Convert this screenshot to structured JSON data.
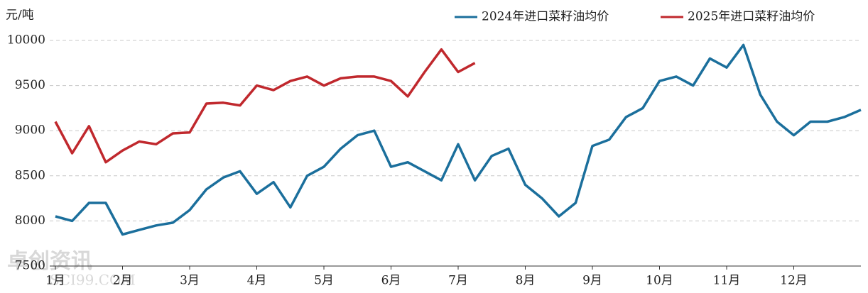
{
  "chart_data": {
    "type": "line",
    "y_label": "元/吨",
    "watermark": [
      "卓创资讯",
      "SCI99.COM"
    ],
    "categories": [
      "1月",
      null,
      null,
      null,
      "2月",
      null,
      null,
      null,
      "3月",
      null,
      null,
      null,
      "4月",
      null,
      null,
      null,
      "5月",
      null,
      null,
      null,
      "6月",
      null,
      null,
      null,
      "7月",
      null,
      null,
      null,
      "8月",
      null,
      null,
      null,
      "9月",
      null,
      null,
      null,
      "10月",
      null,
      null,
      null,
      "11月",
      null,
      null,
      null,
      "12月",
      null,
      null,
      null,
      null
    ],
    "series": [
      {
        "name": "2024年进口菜籽油均价",
        "color": "#1b6f9c",
        "values": [
          8050,
          8000,
          8200,
          8200,
          7850,
          7900,
          7950,
          7980,
          8120,
          8350,
          8480,
          8550,
          8300,
          8430,
          8150,
          8500,
          8600,
          8800,
          8950,
          9000,
          8600,
          8650,
          8550,
          8450,
          8850,
          8450,
          8720,
          8800,
          8400,
          8250,
          8050,
          8200,
          8830,
          8900,
          9150,
          9250,
          9550,
          9600,
          9500,
          9800,
          9700,
          9950,
          9400,
          9100,
          8950,
          9100,
          9100,
          9150,
          9230
        ]
      },
      {
        "name": "2025年进口菜籽油均价",
        "color": "#c0282d",
        "values": [
          9100,
          8750,
          9050,
          8650,
          8780,
          8880,
          8850,
          8970,
          8980,
          9300,
          9310,
          9280,
          9500,
          9450,
          9550,
          9600,
          9500,
          9580,
          9600,
          9600,
          9550,
          9380,
          9650,
          9900,
          9650,
          9750,
          null,
          null,
          null,
          null,
          null,
          null,
          null,
          null,
          null,
          null,
          null,
          null,
          null,
          null,
          null,
          null,
          null,
          null,
          null,
          null,
          null,
          null,
          null
        ]
      }
    ],
    "ylim": [
      7500,
      10000
    ],
    "yticks": [
      7500,
      8000,
      8500,
      9000,
      9500,
      10000
    ],
    "grid": true,
    "legend": "top-right"
  }
}
